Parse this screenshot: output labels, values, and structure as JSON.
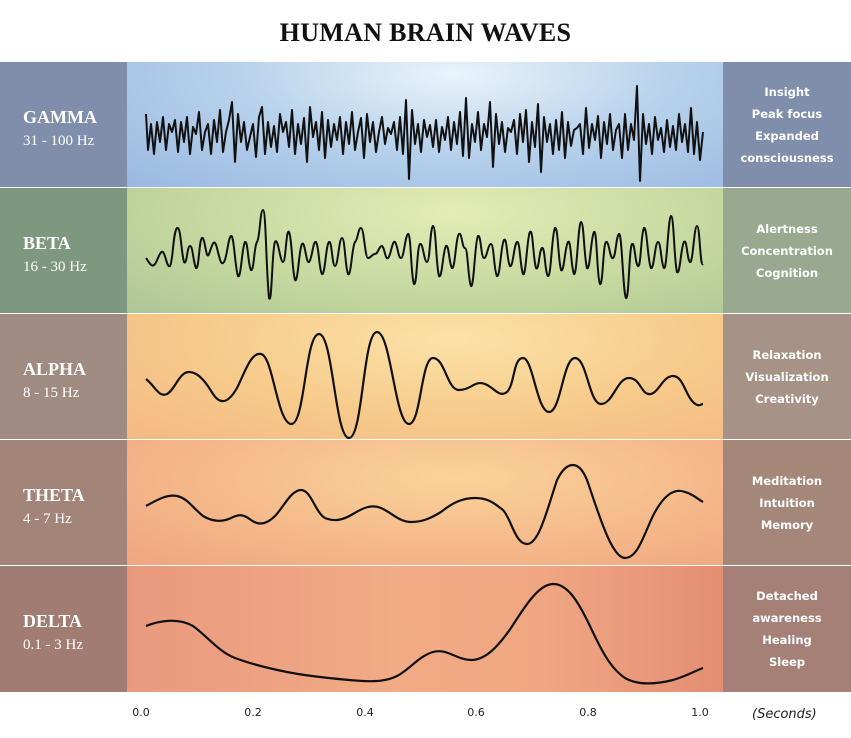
{
  "title": "HUMAN BRAIN WAVES",
  "bands": [
    {
      "id": "gamma",
      "name": "GAMMA",
      "hz": "31 - 100 Hz",
      "traits": [
        "Insight",
        "Peak focus",
        "Expanded",
        "consciousness"
      ]
    },
    {
      "id": "beta",
      "name": "BETA",
      "hz": "16 - 30 Hz",
      "traits": [
        "Alertness",
        "Concentration",
        "Cognition"
      ]
    },
    {
      "id": "alpha",
      "name": "ALPHA",
      "hz": "8 - 15 Hz",
      "traits": [
        "Relaxation",
        "Visualization",
        "Creativity"
      ]
    },
    {
      "id": "theta",
      "name": "THETA",
      "hz": "4 - 7 Hz",
      "traits": [
        "Meditation",
        "Intuition",
        "Memory"
      ]
    },
    {
      "id": "delta",
      "name": "DELTA",
      "hz": "0.1 - 3 Hz",
      "traits": [
        "Detached",
        "awareness",
        "Healing",
        "Sleep"
      ]
    }
  ],
  "x_axis": {
    "ticks": [
      "0.0",
      "0.2",
      "0.4",
      "0.6",
      "0.8",
      "1.0"
    ],
    "unit": "(Seconds)"
  }
}
